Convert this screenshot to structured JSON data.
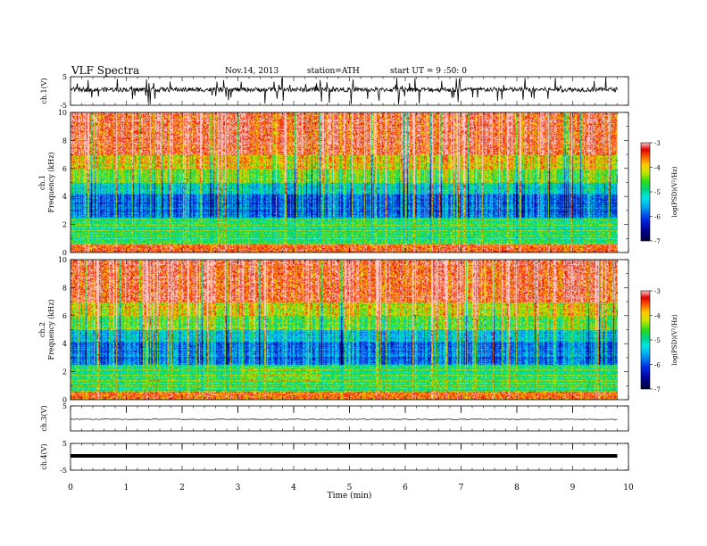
{
  "header": {
    "title": "VLF Spectra",
    "date": "Nov.14, 2013",
    "station": "station=ATH",
    "start": "start UT = 9 :50: 0"
  },
  "chart_data": [
    {
      "id": "ch1-waveform",
      "type": "line",
      "ylabel": "ch.1(V)",
      "ylim": [
        -5,
        5
      ],
      "yticks": [
        "5",
        "-5"
      ],
      "xlim": [
        0,
        10
      ],
      "signal_end_min": 9.8
    },
    {
      "id": "ch1-spectrogram",
      "type": "heatmap",
      "ylabel": "ch.1\nFrequency (kHz)",
      "ylim": [
        0,
        10
      ],
      "yticks": [
        "0",
        "2",
        "4",
        "6",
        "8",
        "10"
      ],
      "xlim": [
        0,
        10
      ],
      "colorbar": {
        "label": "log(PSD)(V²/Hz)",
        "range": [
          -7,
          -3
        ],
        "ticks": [
          "-3",
          "-4",
          "-5",
          "-6",
          "-7"
        ]
      }
    },
    {
      "id": "ch2-spectrogram",
      "type": "heatmap",
      "ylabel": "ch.2\nFrequency (kHz)",
      "ylim": [
        0,
        10
      ],
      "yticks": [
        "0",
        "2",
        "4",
        "6",
        "8",
        "10"
      ],
      "xlim": [
        0,
        10
      ],
      "colorbar": {
        "label": "log(PSD)(V²/Hz)",
        "range": [
          -7,
          -3
        ],
        "ticks": [
          "-3",
          "-4",
          "-5",
          "-6",
          "-7"
        ]
      }
    },
    {
      "id": "ch3-waveform",
      "type": "line",
      "ylabel": "ch.3(V)",
      "ylim": [
        -5,
        5
      ],
      "yticks": [
        "5"
      ],
      "xlim": [
        0,
        10
      ]
    },
    {
      "id": "ch4-waveform",
      "type": "line",
      "ylabel": "ch.4(V)",
      "ylim": [
        -5,
        5
      ],
      "yticks": [
        "5",
        "-5"
      ],
      "xlim": [
        0,
        10
      ],
      "xlabel": "Time (min)",
      "xticks": [
        "0",
        "1",
        "2",
        "3",
        "4",
        "5",
        "6",
        "7",
        "8",
        "9",
        "10"
      ]
    }
  ]
}
